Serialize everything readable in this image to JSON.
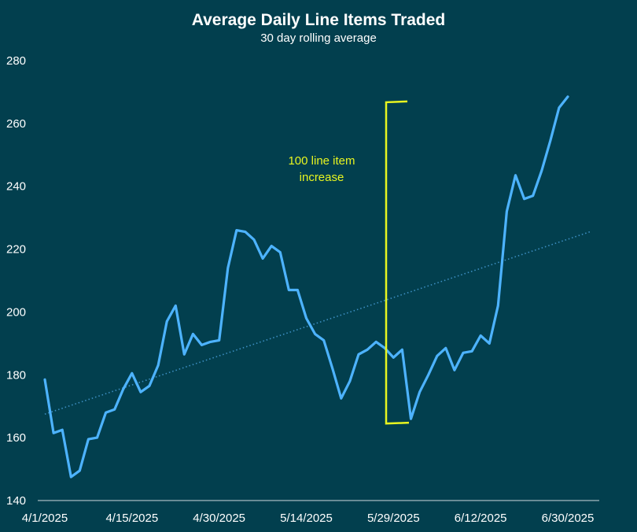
{
  "chart_data": {
    "type": "line",
    "title": "Average Daily Line Items Traded",
    "subtitle": "30 day rolling average",
    "xlabel": "",
    "ylabel": "",
    "ylim": [
      140,
      280
    ],
    "y_ticks": [
      "140",
      "160",
      "180",
      "200",
      "220",
      "240",
      "260",
      "280"
    ],
    "x_tick_labels": [
      "4/1/2025",
      "4/15/2025",
      "4/30/2025",
      "5/14/2025",
      "5/29/2025",
      "6/12/2025",
      "6/30/2025"
    ],
    "grid": false,
    "legend": "none",
    "colors": {
      "background": "#023f4e",
      "series": "#4db3ff",
      "trendline": "#3d8fc2",
      "annotation": "#e8f520",
      "axis": "#cfd8dc",
      "text": "#ffffff"
    },
    "series": [
      {
        "style": "solid",
        "values": [
          178.5,
          161.5,
          162.5,
          147.5,
          149.5,
          159.5,
          160,
          168,
          169,
          175.5,
          180.5,
          174.5,
          176.5,
          183,
          197,
          202,
          186.5,
          193,
          189.5,
          190.5,
          191,
          214,
          226,
          225.5,
          223,
          217,
          221,
          219,
          207,
          207,
          198,
          193,
          191,
          182,
          172.5,
          178,
          186.5,
          188,
          190.5,
          188.5,
          185.5,
          188,
          166,
          174.5,
          180,
          186,
          188.5,
          181.5,
          187,
          187.5,
          192.5,
          190,
          202,
          232,
          243.5,
          236,
          237,
          245,
          254.5,
          265,
          268.5
        ]
      },
      {
        "style": "dotted",
        "trendline": true,
        "values": [
          167.5,
          225.5
        ]
      }
    ],
    "annotations": [
      {
        "text_lines": [
          "100 line item",
          "increase"
        ],
        "type": "bracket",
        "y_top": 267,
        "y_bottom": 164.5
      }
    ]
  }
}
